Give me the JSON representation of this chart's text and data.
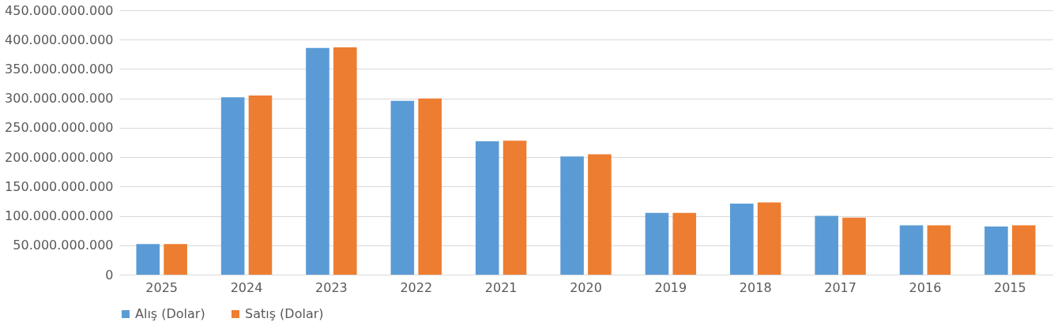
{
  "chart_data": {
    "type": "bar",
    "categories": [
      "2025",
      "2024",
      "2023",
      "2022",
      "2021",
      "2020",
      "2019",
      "2018",
      "2017",
      "2016",
      "2015"
    ],
    "series": [
      {
        "name": "Alış (Dolar)",
        "color": "#5b9bd5",
        "values": [
          52000000000,
          302000000000,
          386000000000,
          296000000000,
          227000000000,
          201000000000,
          105000000000,
          121000000000,
          100000000000,
          84000000000,
          82000000000
        ]
      },
      {
        "name": "Satış (Dolar)",
        "color": "#ed7d31",
        "values": [
          52000000000,
          305000000000,
          387000000000,
          300000000000,
          228000000000,
          205000000000,
          105000000000,
          123000000000,
          97000000000,
          84000000000,
          84000000000
        ]
      }
    ],
    "ylim": [
      0,
      450000000000
    ],
    "yticks": [
      0,
      {
        "value": 50000000000,
        "label": "50.000.000.000"
      },
      {
        "value": 100000000000,
        "label": "100.000.000.000"
      },
      {
        "value": 150000000000,
        "label": "150.000.000.000"
      },
      {
        "value": 200000000000,
        "label": "200.000.000.000"
      },
      {
        "value": 250000000000,
        "label": "250.000.000.000"
      },
      {
        "value": 300000000000,
        "label": "300.000.000.000"
      },
      {
        "value": 350000000000,
        "label": "350.000.000.000"
      },
      {
        "value": 400000000000,
        "label": "400.000.000.000"
      },
      {
        "value": 450000000000,
        "label": "450.000.000.000"
      }
    ],
    "grid": "y",
    "legend": "bottom"
  }
}
